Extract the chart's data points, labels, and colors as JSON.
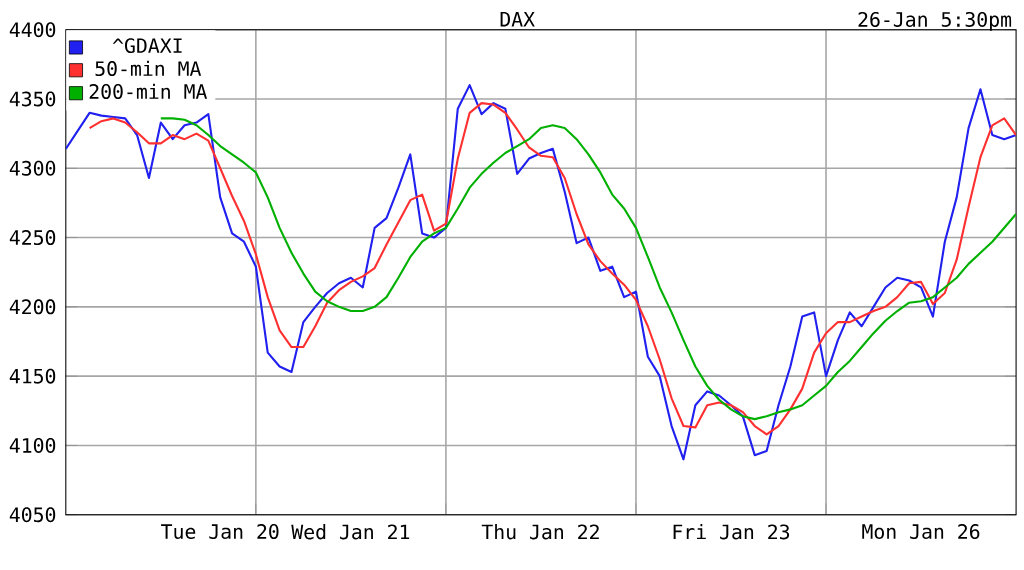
{
  "chart_data": {
    "type": "line",
    "title": "DAX",
    "subtitle": "26-Jan 5:30pm",
    "categories": [
      null,
      null,
      null,
      null,
      null,
      null,
      null,
      null,
      null,
      null,
      null,
      null,
      null,
      "Tue Jan 20",
      null,
      null,
      null,
      null,
      null,
      null,
      null,
      null,
      null,
      null,
      "Wed Jan 21",
      null,
      null,
      null,
      null,
      null,
      null,
      null,
      null,
      null,
      null,
      null,
      null,
      null,
      null,
      null,
      "Thu Jan 22",
      null,
      null,
      null,
      null,
      null,
      null,
      null,
      null,
      null,
      null,
      null,
      null,
      null,
      null,
      null,
      "Fri Jan 23",
      null,
      null,
      null,
      null,
      null,
      null,
      null,
      null,
      null,
      null,
      null,
      null,
      null,
      null,
      null,
      "Mon Jan 26",
      null,
      null,
      null,
      null,
      null,
      null,
      null,
      null
    ],
    "ylim": [
      4050,
      4400
    ],
    "yticks": [
      4050,
      4100,
      4150,
      4200,
      4250,
      4300,
      4350,
      4400
    ],
    "grid": true,
    "legend": "top left",
    "series": [
      {
        "name": "^GDAXI",
        "color": "#2020f0",
        "values": [
          4314,
          4327,
          4340,
          4338,
          4337,
          4336,
          4324,
          4293,
          4333,
          4321,
          4331,
          4333,
          4339,
          4279,
          4253,
          4247,
          4229,
          4167,
          4157,
          4153,
          4189,
          4200,
          4210,
          4217,
          4221,
          4214,
          4257,
          4264,
          4286,
          4310,
          4253,
          4250,
          4257,
          4343,
          4360,
          4339,
          4347,
          4343,
          4296,
          4307,
          4311,
          4314,
          4283,
          4246,
          4250,
          4226,
          4229,
          4207,
          4211,
          4164,
          4150,
          4114,
          4090,
          4129,
          4139,
          4136,
          4129,
          4121,
          4093,
          4096,
          4129,
          4157,
          4193,
          4196,
          4150,
          4176,
          4196,
          4186,
          4200,
          4214,
          4221,
          4219,
          4214,
          4193,
          4247,
          4279,
          4329,
          4357,
          4324,
          4321,
          4324
        ]
      },
      {
        "name": "50-min MA",
        "color": "#ff3030",
        "values": [
          null,
          null,
          4329,
          4334,
          4336,
          4333,
          4326,
          4318,
          4318,
          4324,
          4321,
          4325,
          4320,
          4300,
          4280,
          4262,
          4238,
          4207,
          4183,
          4171,
          4171,
          4186,
          4203,
          4212,
          4218,
          4222,
          4228,
          4245,
          4261,
          4277,
          4281,
          4255,
          4260,
          4307,
          4340,
          4347,
          4346,
          4340,
          4328,
          4315,
          4309,
          4308,
          4293,
          4267,
          4245,
          4233,
          4224,
          4216,
          4205,
          4186,
          4162,
          4134,
          4114,
          4113,
          4129,
          4131,
          4129,
          4124,
          4114,
          4108,
          4114,
          4126,
          4141,
          4167,
          4181,
          4189,
          4189,
          4193,
          4197,
          4200,
          4207,
          4217,
          4218,
          4202,
          4210,
          4234,
          4272,
          4308,
          4331,
          4336,
          4324
        ]
      },
      {
        "name": "200-min MA",
        "color": "#00b000",
        "values": [
          null,
          null,
          null,
          null,
          null,
          null,
          null,
          null,
          4336,
          4336,
          4335,
          4331,
          4324,
          4316,
          4310,
          4304,
          4297,
          4279,
          4257,
          4239,
          4224,
          4211,
          4204,
          4200,
          4197,
          4197,
          4200,
          4207,
          4221,
          4236,
          4247,
          4253,
          4257,
          4271,
          4286,
          4296,
          4304,
          4311,
          4316,
          4321,
          4329,
          4331,
          4329,
          4321,
          4310,
          4297,
          4281,
          4271,
          4257,
          4236,
          4214,
          4196,
          4176,
          4157,
          4143,
          4133,
          4126,
          4121,
          4119,
          4121,
          4124,
          4126,
          4129,
          4136,
          4143,
          4153,
          4161,
          4171,
          4181,
          4190,
          4197,
          4203,
          4204,
          4207,
          4214,
          4221,
          4231,
          4239,
          4247,
          4257,
          4267
        ]
      }
    ]
  }
}
